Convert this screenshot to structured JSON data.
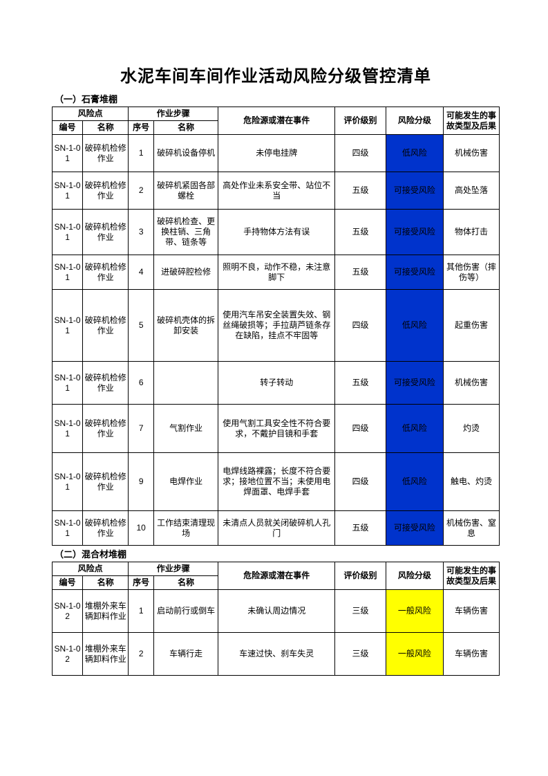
{
  "title": "水泥车间车间作业活动风险分级管控清单",
  "columns": {
    "risk_point": "风险点",
    "step": "作业步骤",
    "code": "编号",
    "name": "名称",
    "seq": "序号",
    "step_name": "名称",
    "hazard": "危险源或潜在事件",
    "eval": "评价级别",
    "risk": "风险分级",
    "accident": "可能发生的事故类型及后果"
  },
  "risk_colors": {
    "low": "#0033cc",
    "acceptable": "#0033cc",
    "general": "#ffff00"
  },
  "sections": [
    {
      "title": "（一）石膏堆棚",
      "rows": [
        {
          "code": "SN-1-01",
          "name": "破碎机检修作业",
          "seq": "1",
          "step": "破碎机设备停机",
          "hazard": "未停电挂牌",
          "eval": "四级",
          "risk": "低风险",
          "risk_key": "low",
          "acc": "机械伤害",
          "h": 54
        },
        {
          "code": "SN-1-01",
          "name": "破碎机检修作业",
          "seq": "2",
          "step": "破碎机紧固各部螺栓",
          "hazard": "高处作业未系安全带、站位不当",
          "eval": "五级",
          "risk": "可接受风险",
          "risk_key": "acceptable",
          "acc": "高处坠落",
          "h": 54
        },
        {
          "code": "SN-1-01",
          "name": "破碎机检修作业",
          "seq": "3",
          "step": "破碎机检查、更换柱销、三角带、链条等",
          "hazard": "手持物体方法有误",
          "eval": "五级",
          "risk": "可接受风险",
          "risk_key": "acceptable",
          "acc": "物体打击",
          "h": 66
        },
        {
          "code": "SN-1-01",
          "name": "破碎机检修作业",
          "seq": "4",
          "step": "进破碎腔检修",
          "hazard": "照明不良，动作不稳，未注意脚下",
          "eval": "五级",
          "risk": "可接受风险",
          "risk_key": "acceptable",
          "acc": "其他伤害（摔伤等）",
          "h": 50
        },
        {
          "code": "SN-1-01",
          "name": "破碎机检修作业",
          "seq": "5",
          "step": "破碎机壳体的拆卸安装",
          "hazard": "使用汽车吊安全装置失效、钢丝绳破损等；手拉葫芦链条存在缺陷，挂点不牢固等",
          "eval": "四级",
          "risk": "低风险",
          "risk_key": "low",
          "acc": "起重伤害",
          "h": 104
        },
        {
          "code": "SN-1-01",
          "name": "破碎机检修作业",
          "seq": "6",
          "step": "",
          "hazard": "转子转动",
          "eval": "五级",
          "risk": "可接受风险",
          "risk_key": "acceptable",
          "acc": "机械伤害",
          "h": 62
        },
        {
          "code": "SN-1-01",
          "name": "破碎机检修作业",
          "seq": "7",
          "step": "气割作业",
          "hazard": "使用气割工具安全性不符合要求，不戴护目镜和手套",
          "eval": "四级",
          "risk": "低风险",
          "risk_key": "low",
          "acc": "灼烫",
          "h": 70
        },
        {
          "code": "SN-1-01",
          "name": "破碎机检修作业",
          "seq": "9",
          "step": "电焊作业",
          "hazard": "电焊线路裸露；长度不符合要求；接地位置不当；未使用电焊面罩、电焊手套",
          "eval": "四级",
          "risk": "低风险",
          "risk_key": "low",
          "acc": "触电、灼烫",
          "h": 84
        },
        {
          "code": "SN-1-01",
          "name": "破碎机检修作业",
          "seq": "10",
          "step": "工作结束清理现场",
          "hazard": "未清点人员就关闭破碎机人孔门",
          "eval": "五级",
          "risk": "可接受风险",
          "risk_key": "acceptable",
          "acc": "机械伤害、窒息",
          "h": 50
        }
      ]
    },
    {
      "title": "（二）混合材堆棚",
      "rows": [
        {
          "code": "SN-1-02",
          "name": "堆棚外来车辆卸料作业",
          "seq": "1",
          "step": "启动前行或倒车",
          "hazard": "未确认周边情况",
          "eval": "三级",
          "risk": "一般风险",
          "risk_key": "general",
          "acc": "车辆伤害",
          "h": 62
        },
        {
          "code": "SN-1-02",
          "name": "堆棚外来车辆卸料作业",
          "seq": "2",
          "step": "车辆行走",
          "hazard": "车速过快、刹车失灵",
          "eval": "三级",
          "risk": "一般风险",
          "risk_key": "general",
          "acc": "车辆伤害",
          "h": 62
        }
      ]
    }
  ]
}
